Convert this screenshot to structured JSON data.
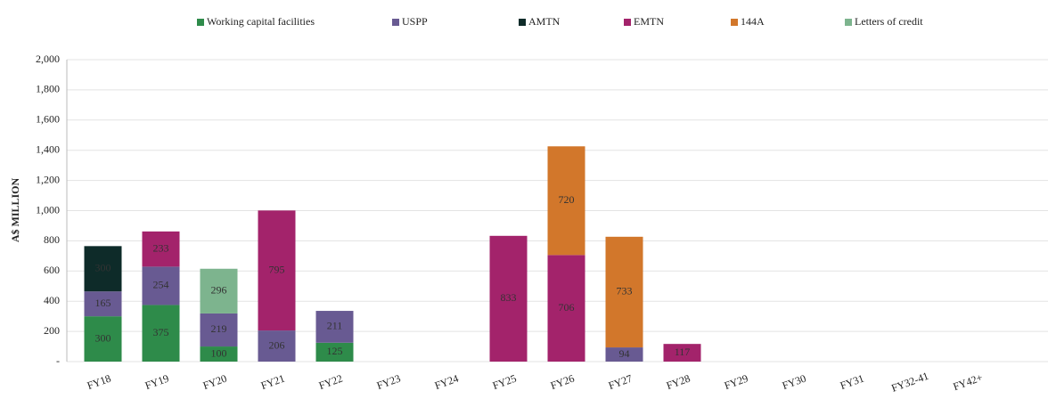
{
  "chart_data": {
    "type": "stacked_bar",
    "y_label": "A$ MILLION",
    "categories": [
      "FY18",
      "FY19",
      "FY20",
      "FY21",
      "FY22",
      "FY23",
      "FY24",
      "FY25",
      "FY26",
      "FY27",
      "FY28",
      "FY29",
      "FY30",
      "FY31",
      "FY32-41",
      "FY42+"
    ],
    "series": [
      {
        "name": "Working capital facilities",
        "color": "#2e8b4a",
        "values": [
          300,
          375,
          100,
          null,
          125,
          null,
          null,
          null,
          null,
          null,
          null,
          null,
          null,
          null,
          null,
          null
        ]
      },
      {
        "name": "USPP",
        "color": "#685a92",
        "values": [
          165,
          254,
          219,
          206,
          211,
          null,
          null,
          null,
          null,
          94,
          null,
          null,
          null,
          null,
          null,
          null
        ]
      },
      {
        "name": "AMTN",
        "color": "#0e2b29",
        "values": [
          300,
          null,
          null,
          null,
          null,
          null,
          null,
          null,
          null,
          null,
          null,
          null,
          null,
          null,
          null,
          null
        ]
      },
      {
        "name": "EMTN",
        "color": "#a3236b",
        "values": [
          null,
          233,
          null,
          795,
          null,
          null,
          null,
          833,
          706,
          null,
          117,
          null,
          null,
          null,
          null,
          null
        ]
      },
      {
        "name": "144A",
        "color": "#d2772b",
        "values": [
          null,
          null,
          null,
          null,
          null,
          null,
          null,
          null,
          720,
          733,
          null,
          null,
          null,
          null,
          null,
          null
        ]
      },
      {
        "name": "Letters of credit",
        "color": "#7db48e",
        "values": [
          null,
          null,
          296,
          null,
          null,
          null,
          null,
          null,
          null,
          null,
          null,
          null,
          null,
          null,
          null,
          null
        ]
      }
    ],
    "ylim": [
      0,
      2000
    ],
    "yticks": [
      {
        "value": 0,
        "label": "-"
      },
      200,
      400,
      600,
      800,
      {
        "value": 1000,
        "label": "1,000"
      },
      {
        "value": 1200,
        "label": "1,200"
      },
      {
        "value": 1400,
        "label": "1,400"
      },
      {
        "value": 1600,
        "label": "1,600"
      },
      {
        "value": 1800,
        "label": "1,800"
      },
      {
        "value": 2000,
        "label": "2,000"
      }
    ],
    "grid": true,
    "legend": "top"
  }
}
